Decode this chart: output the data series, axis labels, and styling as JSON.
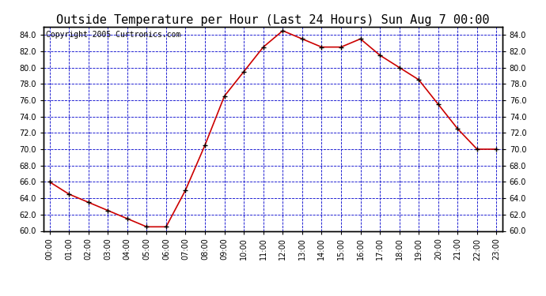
{
  "title": "Outside Temperature per Hour (Last 24 Hours) Sun Aug 7 00:00",
  "copyright": "Copyright 2005 Curtronics.com",
  "hours": [
    "00:00",
    "01:00",
    "02:00",
    "03:00",
    "04:00",
    "05:00",
    "06:00",
    "07:00",
    "08:00",
    "09:00",
    "10:00",
    "11:00",
    "12:00",
    "13:00",
    "14:00",
    "15:00",
    "16:00",
    "17:00",
    "18:00",
    "19:00",
    "20:00",
    "21:00",
    "22:00",
    "23:00"
  ],
  "temps": [
    66.0,
    64.5,
    63.5,
    62.5,
    61.5,
    60.5,
    60.5,
    65.0,
    70.5,
    76.5,
    79.5,
    82.5,
    84.5,
    83.5,
    82.5,
    82.5,
    83.5,
    81.5,
    80.0,
    78.5,
    75.5,
    72.5,
    70.0,
    70.0
  ],
  "ylim": [
    60.0,
    85.0
  ],
  "yticks": [
    60.0,
    62.0,
    64.0,
    66.0,
    68.0,
    70.0,
    72.0,
    74.0,
    76.0,
    78.0,
    80.0,
    82.0,
    84.0
  ],
  "line_color": "#cc0000",
  "marker_color": "#000000",
  "grid_color": "#0000cc",
  "bg_color": "#ffffff",
  "plot_bg_color": "#ffffff",
  "title_fontsize": 11,
  "copyright_fontsize": 7,
  "tick_fontsize": 7,
  "axis_label_color": "#000000"
}
